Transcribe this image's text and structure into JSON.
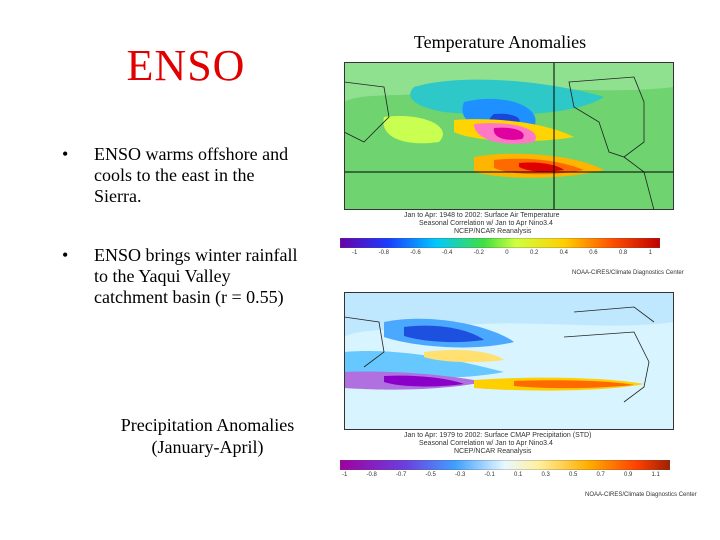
{
  "slide": {
    "title": "ENSO",
    "bullets": [
      "ENSO warms offshore and cools to the east in the Sierra.",
      "ENSO brings winter rainfall to the Yaqui Valley catchment basin (r = 0.55)"
    ],
    "bullet_marker": "•",
    "precip_caption_line1": "Precipitation Anomalies",
    "precip_caption_line2": "(January-April)",
    "temp_caption": "Temperature Anomalies"
  },
  "temp_map": {
    "subtitle_line1": "Jan to Apr: 1948 to 2002: Surface Air Temperature",
    "subtitle_line2": "Seasonal Correlation w/ Jan to Apr Nino3.4",
    "subtitle_line3": "NCEP/NCAR Reanalysis",
    "colorbar_ticks": [
      "-1",
      "-0.8",
      "-0.6",
      "-0.4",
      "-0.2",
      "0",
      "0.2",
      "0.4",
      "0.6",
      "0.8",
      "1"
    ],
    "credit": "NOAA-CIRES/Climate Diagnostics Center"
  },
  "precip_map": {
    "subtitle_line1": "Jan to Apr: 1979 to 2002: Surface CMAP Precipitation (STD)",
    "subtitle_line2": "Seasonal Correlation w/ Jan to Apr Nino3.4",
    "subtitle_line3": "NCEP/NCAR Reanalysis",
    "colorbar_ticks": [
      "-1",
      "-0.8",
      "-0.7",
      "-0.5",
      "-0.3",
      "-0.1",
      "0.1",
      "0.3",
      "0.5",
      "0.7",
      "0.9",
      "1.1"
    ],
    "credit": "NOAA-CIRES/Climate Diagnostics Center"
  }
}
